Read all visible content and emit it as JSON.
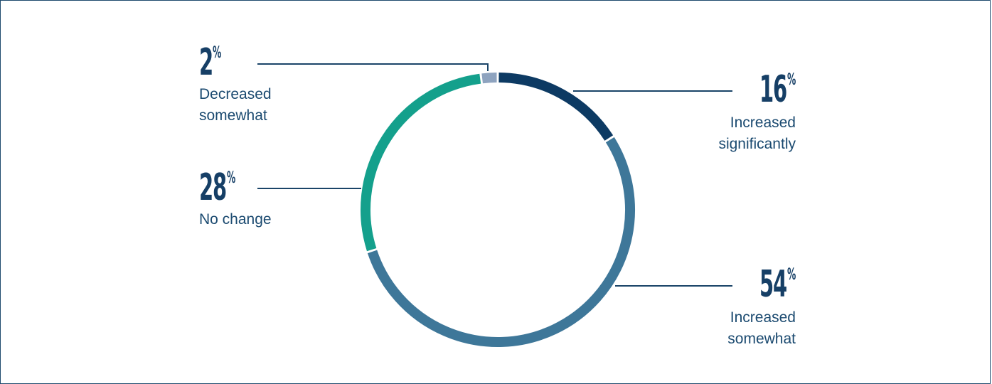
{
  "chart_data": {
    "type": "pie",
    "variant": "donut",
    "slices": [
      {
        "label": "Increased significantly",
        "value": 16,
        "display": "16",
        "color": "#0d3a63"
      },
      {
        "label": "Increased somewhat",
        "value": 54,
        "display": "54",
        "color": "#3e7799"
      },
      {
        "label": "No change",
        "value": 28,
        "display": "28",
        "color": "#14a08c"
      },
      {
        "label": "Decreased somewhat",
        "value": 2,
        "display": "2",
        "color": "#8ea3bf"
      }
    ],
    "percent_symbol": "%",
    "labels_text": {
      "dec_line1": "Decreased",
      "dec_line2": "somewhat",
      "nochange": "No change",
      "inc_sig_line1": "Increased",
      "inc_sig_line2": "significantly",
      "inc_some_line1": "Increased",
      "inc_some_line2": "somewhat"
    }
  }
}
